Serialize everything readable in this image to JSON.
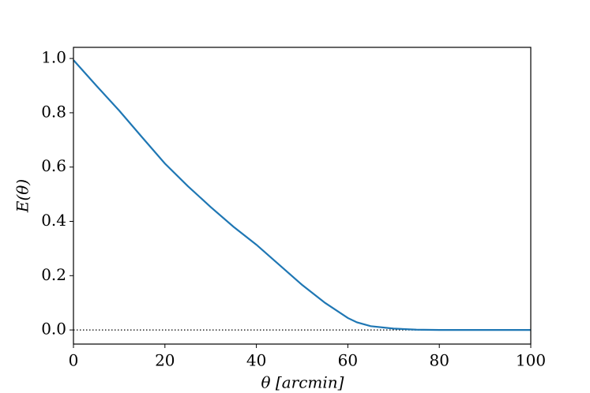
{
  "chart_data": {
    "type": "line",
    "xlabel": "θ [arcmin]",
    "ylabel": "E(θ)",
    "x": [
      0,
      5,
      10,
      15,
      20,
      25,
      30,
      35,
      40,
      45,
      50,
      55,
      60,
      62,
      65,
      70,
      75,
      80,
      85,
      90,
      95,
      100
    ],
    "series": [
      {
        "color": "#1f77b4",
        "values": [
          0.994,
          0.9,
          0.808,
          0.71,
          0.613,
          0.53,
          0.453,
          0.38,
          0.314,
          0.24,
          0.166,
          0.1,
          0.044,
          0.028,
          0.014,
          0.005,
          0.001,
          0,
          0,
          0,
          0,
          0
        ]
      }
    ],
    "hline": 0,
    "xlim": [
      0,
      100
    ],
    "xticks": [
      0,
      20,
      40,
      60,
      80,
      100
    ],
    "ylim": [
      -0.052,
      1.041
    ],
    "yticks": [
      {
        "value": 0,
        "label": "0.0"
      },
      0.2,
      0.4,
      0.6,
      0.8,
      {
        "value": 1,
        "label": "1.0"
      }
    ],
    "grid": false
  }
}
